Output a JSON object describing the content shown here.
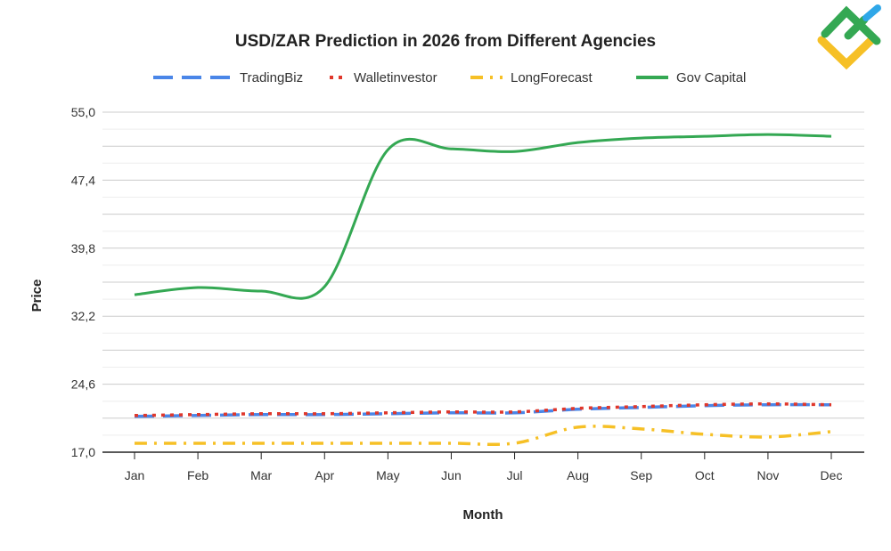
{
  "chart_data": {
    "type": "line",
    "title": "USD/ZAR Prediction in 2026 from Different Agencies",
    "xlabel": "Month",
    "ylabel": "Price",
    "categories": [
      "Jan",
      "Feb",
      "Mar",
      "Apr",
      "May",
      "Jun",
      "Jul",
      "Aug",
      "Sep",
      "Oct",
      "Nov",
      "Dec"
    ],
    "ylim": [
      17.0,
      55.0
    ],
    "yticks": [
      "17,0",
      "24,6",
      "32,2",
      "39,8",
      "47,4",
      "55,0"
    ],
    "grid": true,
    "legend": "top",
    "series": [
      {
        "name": "TradingBiz",
        "color": "#4a86e8",
        "dash": "long-dash",
        "values": [
          21.0,
          21.1,
          21.2,
          21.2,
          21.3,
          21.4,
          21.4,
          21.8,
          22.0,
          22.2,
          22.3,
          22.3
        ]
      },
      {
        "name": "Walletinvestor",
        "color": "#e0372b",
        "dash": "dotted",
        "values": [
          21.1,
          21.2,
          21.3,
          21.3,
          21.4,
          21.5,
          21.5,
          21.9,
          22.1,
          22.3,
          22.4,
          22.3
        ]
      },
      {
        "name": "LongForecast",
        "color": "#f6c026",
        "dash": "dash-dot",
        "values": [
          18.0,
          18.0,
          18.0,
          18.0,
          18.0,
          18.0,
          18.0,
          19.8,
          19.6,
          19.0,
          18.7,
          19.3
        ]
      },
      {
        "name": "Gov Capital",
        "color": "#34a853",
        "dash": "solid",
        "values": [
          34.6,
          35.4,
          35.0,
          35.5,
          50.8,
          50.9,
          50.6,
          51.6,
          52.1,
          52.3,
          52.5,
          52.3
        ]
      }
    ]
  },
  "logo": {
    "colors": [
      "#34a853",
      "#f6c026",
      "#2fa7e8"
    ]
  }
}
